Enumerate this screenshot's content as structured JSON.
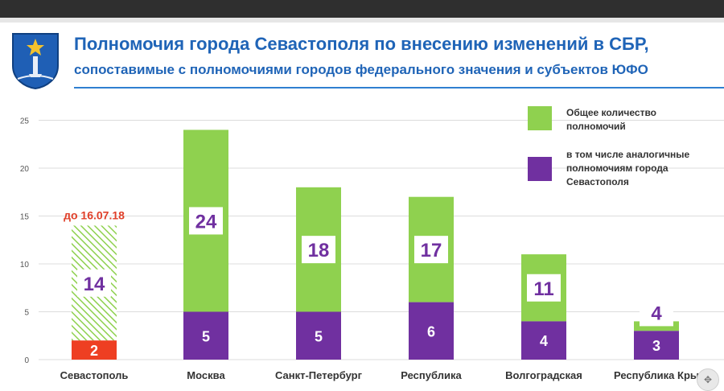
{
  "header": {
    "title": "Полномочия города Севастополя по внесению изменений в СБР,",
    "subtitle": "сопоставимые с полномочиями городов федерального значения и субъектов ЮФО"
  },
  "colors": {
    "total": "#8fd14f",
    "common": "#7030a0",
    "sevastopol": "#ee3f22",
    "label_red": "#e0402a",
    "title_blue": "#1f64b7"
  },
  "chart_data": {
    "type": "bar",
    "categories": [
      "Севастополь",
      "Москва",
      "Санкт-Петербург",
      "Республика",
      "Волгоградская",
      "Республика Кры"
    ],
    "ylim": [
      0,
      25
    ],
    "yticks": [
      0,
      5,
      10,
      15,
      20,
      25
    ],
    "grid": true,
    "legend_position": "top-right",
    "series": [
      {
        "name": "Общее количество полномочий",
        "values": [
          14,
          24,
          18,
          17,
          11,
          4
        ]
      },
      {
        "name": "в том числе аналогичные полномочиям города Севастополя",
        "values": [
          2,
          5,
          5,
          6,
          4,
          3
        ]
      }
    ],
    "annotations": [
      {
        "category": "Севастополь",
        "text": "до 16.07.18",
        "note": "hatched"
      }
    ]
  },
  "legend": [
    {
      "label": "Общее количество\nполномочий",
      "color": "#8fd14f"
    },
    {
      "label": "в том числе аналогичные\nполномочиям города\nСевастополя",
      "color": "#7030a0"
    }
  ]
}
